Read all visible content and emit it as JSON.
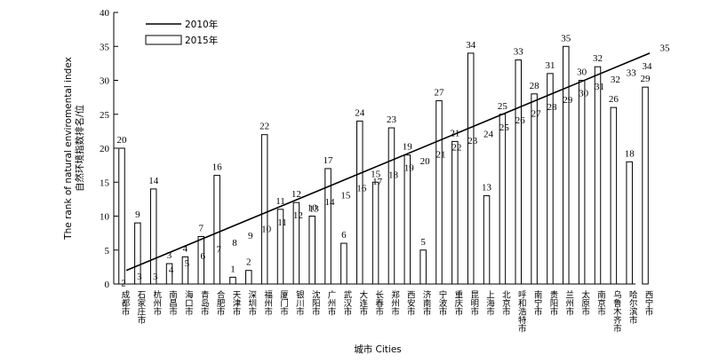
{
  "chart_data": {
    "type": "bar",
    "xlabel": "城市 Cities",
    "ylabel": "自然环境指数排名/位 The rank of natural enviromental index",
    "ylabel_cn": "自然环境指数排名/位",
    "ylabel_en": "The rank of natural enviromental index",
    "ylim": [
      0,
      40
    ],
    "yticks": [
      0,
      5,
      10,
      15,
      20,
      25,
      30,
      35,
      40
    ],
    "grid": false,
    "legend_position": "top-left",
    "categories": [
      "成都市",
      "石家庄市",
      "杭州市",
      "南昌市",
      "海口市",
      "青岛市",
      "合肥市",
      "天津市",
      "深圳市",
      "福州市",
      "厦门市",
      "银川市",
      "沈阳市",
      "广州市",
      "武汉市",
      "大连市",
      "长春市",
      "郑州市",
      "西安市",
      "济南市",
      "宁波市",
      "重庆市",
      "昆明市",
      "上海市",
      "北京市",
      "呼和浩特市",
      "南宁市",
      "贵阳市",
      "兰州市",
      "太原市",
      "南京市",
      "乌鲁木齐市",
      "哈尔滨市",
      "西宁市"
    ],
    "series": [
      {
        "name": "2010年",
        "kind": "line",
        "values": [
          2,
          3,
          3,
          4,
          5,
          6,
          7,
          8,
          9,
          10,
          11,
          12,
          13,
          14,
          15,
          16,
          17,
          18,
          19,
          20,
          21,
          22,
          23,
          24,
          25,
          26,
          27,
          28,
          29,
          30,
          31,
          32,
          33,
          34
        ],
        "extra_label": "35"
      },
      {
        "name": "2015年",
        "kind": "bar",
        "values": [
          20,
          9,
          14,
          3,
          4,
          7,
          16,
          1,
          2,
          22,
          11,
          12,
          10,
          17,
          6,
          24,
          15,
          23,
          19,
          5,
          27,
          21,
          34,
          13,
          25,
          33,
          28,
          31,
          35,
          30,
          32,
          26,
          18,
          29
        ]
      }
    ]
  }
}
